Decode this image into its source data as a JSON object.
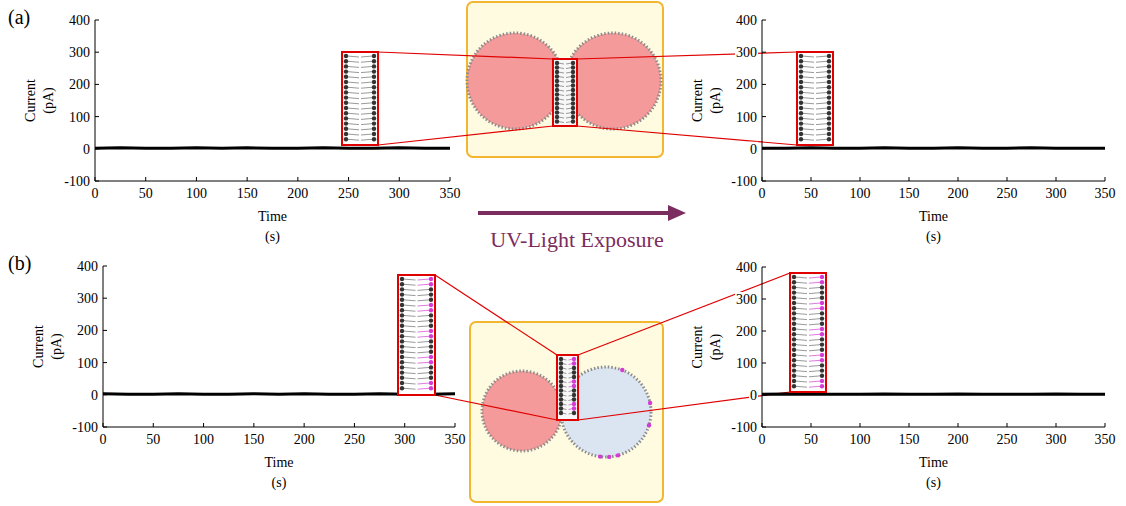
{
  "chart_data": [
    {
      "type": "line",
      "x": [
        0,
        25,
        50,
        75,
        100,
        125,
        150,
        175,
        200,
        225,
        250,
        275,
        300,
        325,
        350
      ],
      "values": [
        2,
        3,
        2,
        2,
        3,
        2,
        3,
        2,
        2,
        3,
        2,
        2,
        3,
        2,
        2
      ],
      "color": "#000000",
      "xlim": [
        0,
        350
      ],
      "ylim": [
        -100,
        400
      ],
      "xticks": [
        0,
        50,
        100,
        150,
        200,
        250,
        300,
        350
      ],
      "yticks": [
        -100,
        0,
        100,
        200,
        300,
        400
      ],
      "x_label": "Time (s)",
      "y_label": "Current (pA)",
      "annotations": [
        "(a)"
      ]
    },
    {
      "type": "line",
      "x": [
        0,
        25,
        50,
        75,
        100,
        125,
        150,
        175,
        200,
        225,
        250,
        275,
        300,
        325,
        350
      ],
      "values": [
        2,
        2,
        3,
        2,
        2,
        3,
        2,
        2,
        3,
        2,
        2,
        3,
        2,
        2,
        2
      ],
      "color": "#000000",
      "xlim": [
        0,
        350
      ],
      "ylim": [
        -100,
        400
      ],
      "xticks": [
        0,
        50,
        100,
        150,
        200,
        250,
        300,
        350
      ],
      "yticks": [
        -100,
        0,
        100,
        200,
        300,
        400
      ],
      "x_label": "Time (s)",
      "y_label": "Current (pA)"
    },
    {
      "type": "line",
      "x": [
        0,
        25,
        50,
        75,
        100,
        125,
        150,
        175,
        200,
        225,
        250,
        275,
        300,
        325,
        350
      ],
      "values": [
        3,
        2,
        2,
        3,
        2,
        2,
        3,
        2,
        3,
        2,
        2,
        3,
        2,
        2,
        3
      ],
      "color": "#000000",
      "xlim": [
        0,
        350
      ],
      "ylim": [
        -100,
        400
      ],
      "xticks": [
        0,
        50,
        100,
        150,
        200,
        250,
        300,
        350
      ],
      "yticks": [
        -100,
        0,
        100,
        200,
        300,
        400
      ],
      "x_label": "Time (s)",
      "y_label": "Current (pA)",
      "annotations": [
        "(b)"
      ]
    },
    {
      "type": "line",
      "x": [
        0,
        25,
        50,
        75,
        100,
        125,
        150,
        175,
        200,
        225,
        250,
        275,
        300,
        325,
        350
      ],
      "values": [
        2,
        3,
        2,
        2,
        2,
        3,
        2,
        2,
        3,
        2,
        2,
        2,
        3,
        2,
        2
      ],
      "color": "#000000",
      "xlim": [
        0,
        350
      ],
      "ylim": [
        -100,
        400
      ],
      "xticks": [
        0,
        50,
        100,
        150,
        200,
        250,
        300,
        350
      ],
      "yticks": [
        -100,
        0,
        100,
        200,
        300,
        400
      ],
      "x_label": "Time (s)",
      "y_label": "Current (pA)"
    }
  ],
  "figure": {
    "arrow_label": "UV-Light Exposure"
  }
}
